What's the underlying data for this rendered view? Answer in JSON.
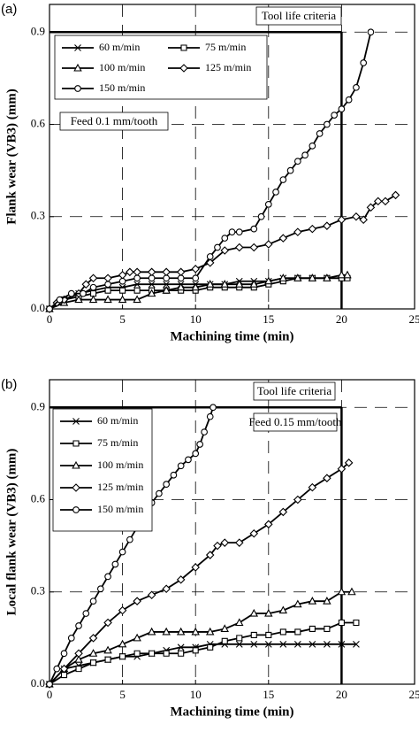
{
  "chart_data": [
    {
      "type": "line",
      "panel_label": "(a)",
      "xlabel": "Machining time (min)",
      "ylabel": "Flank wear (VB3) (mm)",
      "annotations": [
        "Tool life criteria",
        "Feed 0.1 mm/tooth"
      ],
      "tool_life": {
        "time": 20,
        "wear": 0.9
      },
      "xlim": [
        0,
        25
      ],
      "ylim": [
        0,
        0.99
      ],
      "xticks": [
        0,
        5,
        10,
        15,
        20,
        25
      ],
      "yticks": [
        {
          "value": 0,
          "label": "0.0"
        },
        0.3,
        0.6,
        0.9
      ],
      "grid": true,
      "series": [
        {
          "name": "60 m/min",
          "marker": "x",
          "color": "#000000",
          "x": [
            0,
            1,
            2,
            3,
            4,
            5,
            6,
            7,
            8,
            9,
            10,
            11,
            12,
            13,
            14,
            15,
            16,
            17,
            18,
            19,
            20
          ],
          "values": [
            0,
            0.03,
            0.05,
            0.06,
            0.07,
            0.07,
            0.08,
            0.08,
            0.08,
            0.08,
            0.08,
            0.08,
            0.08,
            0.09,
            0.09,
            0.09,
            0.1,
            0.1,
            0.1,
            0.1,
            0.1
          ]
        },
        {
          "name": "75 m/min",
          "marker": "square",
          "color": "#000000",
          "x": [
            0,
            1,
            2,
            3,
            4,
            5,
            6,
            7,
            8,
            9,
            10,
            11,
            12,
            13,
            14,
            15,
            16,
            17,
            18,
            19,
            20,
            20.4
          ],
          "values": [
            0,
            0.03,
            0.04,
            0.05,
            0.06,
            0.06,
            0.06,
            0.06,
            0.06,
            0.06,
            0.06,
            0.07,
            0.07,
            0.07,
            0.07,
            0.08,
            0.09,
            0.1,
            0.1,
            0.1,
            0.1,
            0.1
          ]
        },
        {
          "name": "100 m/min",
          "marker": "triangle",
          "color": "#000000",
          "x": [
            0,
            1,
            2,
            3,
            4,
            5,
            6,
            7,
            8,
            9,
            10,
            11,
            12,
            13,
            14,
            15,
            16,
            17,
            18,
            19,
            20,
            20.4
          ],
          "values": [
            0,
            0.02,
            0.03,
            0.03,
            0.03,
            0.03,
            0.03,
            0.05,
            0.06,
            0.07,
            0.07,
            0.08,
            0.08,
            0.08,
            0.08,
            0.09,
            0.1,
            0.1,
            0.1,
            0.1,
            0.11,
            0.11
          ]
        },
        {
          "name": "125 m/min",
          "marker": "diamond",
          "color": "#000000",
          "x": [
            0,
            0.5,
            1,
            2,
            2.5,
            3,
            4,
            5,
            5.5,
            6,
            7,
            8,
            9,
            10,
            11,
            12,
            13,
            14,
            15,
            16,
            17,
            18,
            19,
            20,
            21,
            21.5,
            22,
            22.5,
            23,
            23.7
          ],
          "values": [
            0,
            0.02,
            0.03,
            0.05,
            0.08,
            0.1,
            0.1,
            0.11,
            0.12,
            0.12,
            0.12,
            0.12,
            0.12,
            0.13,
            0.15,
            0.19,
            0.2,
            0.2,
            0.21,
            0.23,
            0.25,
            0.26,
            0.27,
            0.29,
            0.3,
            0.29,
            0.33,
            0.35,
            0.35,
            0.37
          ]
        },
        {
          "name": "150 m/min",
          "marker": "circle",
          "color": "#000000",
          "x": [
            0,
            0.7,
            1.5,
            2.3,
            3,
            4,
            5,
            6,
            7,
            8,
            9,
            10,
            11,
            11.5,
            12,
            12.5,
            13,
            14,
            14.5,
            15,
            15.5,
            16,
            16.5,
            17,
            17.5,
            18,
            18.5,
            19,
            19.5,
            20,
            20.5,
            21,
            21.5,
            22
          ],
          "values": [
            0,
            0.03,
            0.05,
            0.05,
            0.07,
            0.08,
            0.09,
            0.1,
            0.1,
            0.1,
            0.1,
            0.1,
            0.17,
            0.2,
            0.23,
            0.25,
            0.25,
            0.26,
            0.3,
            0.34,
            0.38,
            0.42,
            0.45,
            0.48,
            0.5,
            0.53,
            0.57,
            0.6,
            0.63,
            0.65,
            0.68,
            0.72,
            0.8,
            0.9
          ]
        }
      ]
    },
    {
      "type": "line",
      "panel_label": "(b)",
      "xlabel": "Machining time (min)",
      "ylabel": "Local flank wear (VB3) (mm)",
      "annotations": [
        "Tool life criteria",
        "Feed 0.15 mm/tooth"
      ],
      "tool_life": {
        "time": 20,
        "wear": 0.9
      },
      "xlim": [
        0,
        25
      ],
      "ylim": [
        0,
        0.99
      ],
      "xticks": [
        0,
        5,
        10,
        15,
        20,
        25
      ],
      "yticks": [
        {
          "value": 0,
          "label": "0.0"
        },
        0.3,
        0.6,
        0.9
      ],
      "grid": true,
      "series": [
        {
          "name": "60 m/min",
          "marker": "x",
          "color": "#000000",
          "x": [
            0,
            1,
            2,
            3,
            4,
            5,
            6,
            7,
            8,
            9,
            10,
            11,
            12,
            13,
            14,
            15,
            16,
            17,
            18,
            19,
            20,
            21
          ],
          "values": [
            0,
            0.05,
            0.06,
            0.07,
            0.08,
            0.09,
            0.09,
            0.1,
            0.11,
            0.12,
            0.12,
            0.13,
            0.13,
            0.13,
            0.13,
            0.13,
            0.13,
            0.13,
            0.13,
            0.13,
            0.13,
            0.13
          ]
        },
        {
          "name": "75 m/min",
          "marker": "square",
          "color": "#000000",
          "x": [
            0,
            1,
            2,
            3,
            4,
            5,
            6,
            7,
            8,
            9,
            10,
            11,
            12,
            13,
            14,
            15,
            16,
            17,
            18,
            19,
            20,
            21
          ],
          "values": [
            0,
            0.03,
            0.05,
            0.07,
            0.08,
            0.09,
            0.1,
            0.1,
            0.1,
            0.1,
            0.11,
            0.12,
            0.14,
            0.15,
            0.16,
            0.16,
            0.17,
            0.17,
            0.18,
            0.18,
            0.2,
            0.2
          ]
        },
        {
          "name": "100 m/min",
          "marker": "triangle",
          "color": "#000000",
          "x": [
            0,
            1,
            2,
            3,
            4,
            5,
            6,
            7,
            8,
            9,
            10,
            11,
            12,
            13,
            14,
            15,
            16,
            17,
            18,
            19,
            20,
            20.7
          ],
          "values": [
            0,
            0.05,
            0.08,
            0.1,
            0.11,
            0.13,
            0.15,
            0.17,
            0.17,
            0.17,
            0.17,
            0.17,
            0.18,
            0.2,
            0.23,
            0.23,
            0.24,
            0.26,
            0.27,
            0.27,
            0.3,
            0.3
          ]
        },
        {
          "name": "125 m/min",
          "marker": "diamond",
          "color": "#000000",
          "x": [
            0,
            1,
            2,
            3,
            4,
            5,
            6,
            7,
            8,
            9,
            10,
            11,
            11.5,
            12,
            13,
            14,
            15,
            16,
            17,
            18,
            19,
            20,
            20.5
          ],
          "values": [
            0,
            0.05,
            0.1,
            0.15,
            0.2,
            0.24,
            0.27,
            0.29,
            0.31,
            0.34,
            0.38,
            0.42,
            0.45,
            0.46,
            0.46,
            0.49,
            0.52,
            0.56,
            0.6,
            0.64,
            0.67,
            0.7,
            0.72
          ]
        },
        {
          "name": "150 m/min",
          "marker": "circle",
          "color": "#000000",
          "x": [
            0,
            0.5,
            1,
            1.5,
            2,
            2.5,
            3,
            3.5,
            4,
            4.5,
            5,
            5.5,
            6,
            6.5,
            7,
            7.5,
            8,
            8.5,
            9,
            9.5,
            10,
            10.3,
            10.6,
            11,
            11.2
          ],
          "values": [
            0,
            0.05,
            0.1,
            0.15,
            0.19,
            0.23,
            0.27,
            0.31,
            0.35,
            0.39,
            0.43,
            0.47,
            0.51,
            0.55,
            0.59,
            0.62,
            0.65,
            0.68,
            0.71,
            0.73,
            0.75,
            0.78,
            0.82,
            0.87,
            0.9
          ]
        }
      ]
    }
  ]
}
